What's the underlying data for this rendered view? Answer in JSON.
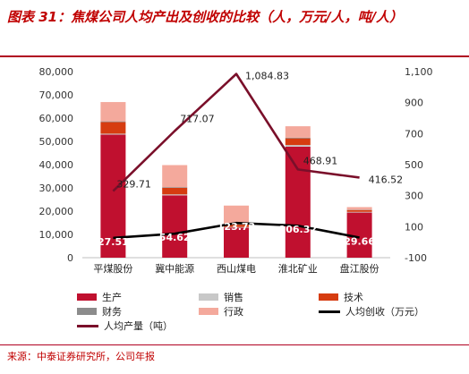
{
  "title": "图表 31：焦煤公司人均产出及创收的比较（人，万元/人，吨/人）",
  "source": "来源：中泰证券研究所，公司年报",
  "colors": {
    "production": "#c0102f",
    "sales": "#c8c8c8",
    "tech": "#d63c10",
    "finance": "#8c8c8c",
    "admin": "#f4a99c",
    "output_line": "#7a0f2a",
    "revenue_line": "#000000"
  },
  "chart_data": {
    "type": "bar",
    "categories": [
      "平煤股份",
      "冀中能源",
      "西山煤电",
      "淮北矿业",
      "盘江股份"
    ],
    "stacked_series": [
      {
        "name": "生产",
        "key": "production",
        "values": [
          52900,
          26800,
          12900,
          47700,
          19400
        ]
      },
      {
        "name": "销售",
        "key": "sales",
        "values": [
          400,
          400,
          300,
          700,
          300
        ]
      },
      {
        "name": "技术",
        "key": "tech",
        "values": [
          5000,
          2800,
          1000,
          2900,
          800
        ]
      },
      {
        "name": "财务",
        "key": "finance",
        "values": [
          300,
          300,
          200,
          300,
          150
        ]
      },
      {
        "name": "行政",
        "key": "admin",
        "values": [
          8300,
          9500,
          8000,
          4900,
          1100
        ]
      }
    ],
    "line_series": [
      {
        "name": "人均产量（吨）",
        "key": "output_line",
        "axis": "right",
        "values": [
          329.71,
          717.07,
          1084.83,
          468.91,
          416.52
        ]
      },
      {
        "name": "人均创收（万元）",
        "key": "revenue_line",
        "axis": "right",
        "values": [
          27.51,
          54.62,
          123.73,
          106.32,
          29.66
        ]
      }
    ],
    "y_left": {
      "min": 0,
      "max": 80000,
      "ticks": [
        "0",
        "10,000",
        "20,000",
        "30,000",
        "40,000",
        "50,000",
        "60,000",
        "70,000",
        "80,000"
      ]
    },
    "y_right": {
      "min": -100,
      "max": 1100,
      "ticks": [
        "-100",
        "100",
        "300",
        "500",
        "700",
        "900",
        "1,100"
      ]
    },
    "output_labels": [
      "329.71",
      "717.07",
      "1,084.83",
      "468.91",
      "416.52"
    ],
    "revenue_labels": [
      "27.51",
      "54.62",
      "123.73",
      "106.32",
      "29.66"
    ]
  },
  "legend": [
    {
      "label": "生产",
      "key": "production",
      "kind": "box"
    },
    {
      "label": "销售",
      "key": "sales",
      "kind": "box"
    },
    {
      "label": "技术",
      "key": "tech",
      "kind": "box"
    },
    {
      "label": "财务",
      "key": "finance",
      "kind": "box"
    },
    {
      "label": "行政",
      "key": "admin",
      "kind": "box"
    },
    {
      "label": "人均创收（万元）",
      "key": "revenue_line",
      "kind": "line"
    },
    {
      "label": "人均产量（吨）",
      "key": "output_line",
      "kind": "line"
    }
  ]
}
